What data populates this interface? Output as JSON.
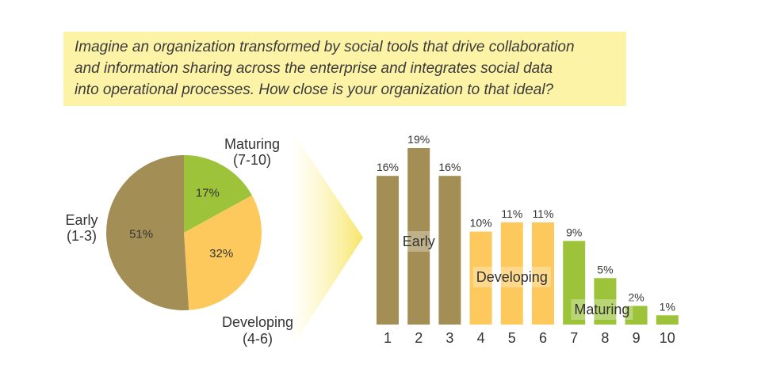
{
  "question": {
    "lines": [
      "Imagine an organization transformed by social tools that drive collaboration",
      "and information sharing across the enterprise and integrates social data",
      "into operational processes. How close is your organization to that ideal?"
    ]
  },
  "colors": {
    "early": "#a38f55",
    "developing": "#fdc95c",
    "maturing": "#9cc33a",
    "question_bg": "#fdf3a6"
  },
  "chart_data": [
    {
      "type": "pie",
      "slices": [
        {
          "name": "Maturing",
          "range": "(7-10)",
          "value": 17,
          "label": "17%",
          "color": "#9cc33a"
        },
        {
          "name": "Developing",
          "range": "(4-6)",
          "value": 32,
          "label": "32%",
          "color": "#fdc95c"
        },
        {
          "name": "Early",
          "range": "(1-3)",
          "value": 51,
          "label": "51%",
          "color": "#a38f55"
        }
      ]
    },
    {
      "type": "bar",
      "categories": [
        "1",
        "2",
        "3",
        "4",
        "5",
        "6",
        "7",
        "8",
        "9",
        "10"
      ],
      "values": [
        16,
        19,
        16,
        10,
        11,
        11,
        9,
        5,
        2,
        1
      ],
      "labels": [
        "16%",
        "19%",
        "16%",
        "10%",
        "11%",
        "11%",
        "9%",
        "5%",
        "2%",
        "1%"
      ],
      "groups": [
        "early",
        "early",
        "early",
        "developing",
        "developing",
        "developing",
        "maturing",
        "maturing",
        "maturing",
        "maturing"
      ],
      "group_labels": {
        "early": "Early",
        "developing": "Developing",
        "maturing": "Maturing"
      },
      "ylim": [
        0,
        19
      ]
    }
  ]
}
